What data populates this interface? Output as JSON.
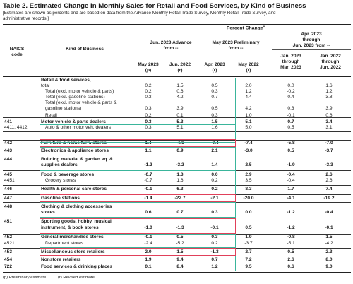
{
  "table": {
    "title": "Table 2.  Estimated Change in Monthly Sales for Retail and Food Services, by Kind of Business",
    "subtitle": "[Estimates are shown as percents and are based on data from the Advance Monthly Retail Trade Survey,  Monthly Retail Trade Survey, and administrative records.]",
    "percent_change": "Percent Change",
    "percent_change_sup": "1",
    "col_naics": [
      "NAICS",
      "code"
    ],
    "col_kind": "Kind of Business",
    "group_advance": [
      "Jun. 2023 Advance",
      "from --"
    ],
    "group_prelim": [
      "May 2023 Preliminary",
      "from --"
    ],
    "group_apr": [
      "Apr. 2023",
      "through",
      "Jun. 2023 from --"
    ],
    "sub_may2023": [
      "May 2023",
      "(p)"
    ],
    "sub_jun2022a": [
      "Jun. 2022",
      "(r)"
    ],
    "sub_apr2023": [
      "Apr. 2023",
      "(r)"
    ],
    "sub_may2022": [
      "May 2022",
      "(r)"
    ],
    "sub_janmar": [
      "Jan. 2023",
      "through",
      "Mar. 2023"
    ],
    "sub_janjun": [
      "Jan. 2022",
      "through",
      "Jun. 2022"
    ]
  },
  "rows": [
    {
      "code": "",
      "kind": "Retail & food services,",
      "v": [
        "",
        "",
        "",
        "",
        "",
        ""
      ],
      "bold": true
    },
    {
      "code": "",
      "kind": "total",
      "v": [
        "0.2",
        "1.5",
        "0.5",
        "2.0",
        "0.0",
        "1.6"
      ],
      "bold": false
    },
    {
      "code": "",
      "kind": "Total (excl. motor vehicle & parts)",
      "v": [
        "0.2",
        "0.6",
        "0.3",
        "1.2",
        "-0.2",
        "1.2"
      ],
      "bold": false
    },
    {
      "code": "",
      "kind": "Total (excl. gasoline stations)",
      "v": [
        "0.3",
        "4.2",
        "0.7",
        "4.4",
        "0.4",
        "3.8"
      ],
      "bold": false
    },
    {
      "code": "",
      "kind": "Total (excl. motor vehicle & parts &",
      "v": [
        "",
        "",
        "",
        "",
        "",
        ""
      ],
      "bold": false
    },
    {
      "code": "",
      "kind": "gasoline stations)",
      "v": [
        "0.3",
        "3.9",
        "0.5",
        "4.2",
        "0.3",
        "3.9"
      ],
      "bold": false
    },
    {
      "code": "",
      "kind": "Retail",
      "v": [
        "0.2",
        "0.1",
        "0.3",
        "1.0",
        "-0.1",
        "0.6"
      ],
      "bold": false
    },
    {
      "code": "441",
      "kind": "Motor vehicle & parts dealers",
      "v": [
        "0.3",
        "5.3",
        "1.5",
        "5.1",
        "0.7",
        "3.4"
      ],
      "bold": true
    },
    {
      "code": "4411, 4412",
      "kind": "Auto & other motor veh. dealers",
      "v": [
        "0.3",
        "5.1",
        "1.6",
        "5.0",
        "0.5",
        "3.1"
      ],
      "bold": false
    },
    {
      "code": "442",
      "kind": "Furniture & home furn. stores",
      "v": [
        "1.4",
        "-4.6",
        "-0.4",
        "-7.4",
        "-5.8",
        "-7.0"
      ],
      "bold": true
    },
    {
      "code": "443",
      "kind": "Electronics & appliance stores",
      "v": [
        "1.1",
        "0.9",
        "2.1",
        "-3.0",
        "0.5",
        "-3.7"
      ],
      "bold": true
    },
    {
      "code": "444",
      "kind": "Building material & garden eq. &",
      "v": [
        "",
        "",
        "",
        "",
        "",
        ""
      ],
      "bold": true
    },
    {
      "code": "",
      "kind": "supplies dealers",
      "v": [
        "-1.2",
        "-3.2",
        "1.4",
        "2.5",
        "-1.9",
        "-3.3"
      ],
      "bold": true
    },
    {
      "code": "445",
      "kind": "Food & beverage stores",
      "v": [
        "-0.7",
        "1.3",
        "0.0",
        "2.9",
        "-0.4",
        "2.6"
      ],
      "bold": true
    },
    {
      "code": "4451",
      "kind": "Grocery stores",
      "v": [
        "-0.7",
        "1.6",
        "0.2",
        "3.5",
        "-0.4",
        "2.6"
      ],
      "bold": false
    },
    {
      "code": "446",
      "kind": "Health & personal care stores",
      "v": [
        "-0.1",
        "6.3",
        "0.2",
        "8.3",
        "1.7",
        "7.4"
      ],
      "bold": true
    },
    {
      "code": "447",
      "kind": "Gasoline stations",
      "v": [
        "-1.4",
        "-22.7",
        "-2.1",
        "-20.0",
        "-4.1",
        "-19.2"
      ],
      "bold": true
    },
    {
      "code": "448",
      "kind": "Clothing & clothing accessories",
      "v": [
        "",
        "",
        "",
        "",
        "",
        ""
      ],
      "bold": true
    },
    {
      "code": "",
      "kind": "stores",
      "v": [
        "0.6",
        "0.7",
        "0.3",
        "0.0",
        "-1.2",
        "-0.4"
      ],
      "bold": true
    },
    {
      "code": "451",
      "kind": "Sporting goods, hobby, musical",
      "v": [
        "",
        "",
        "",
        "",
        "",
        ""
      ],
      "bold": true
    },
    {
      "code": "",
      "kind": "instrument, & book stores",
      "v": [
        "-1.0",
        "-1.3",
        "-0.1",
        "0.5",
        "-1.2",
        "-0.1"
      ],
      "bold": true
    },
    {
      "code": "452",
      "kind": "General merchandise stores",
      "v": [
        "-0.1",
        "0.5",
        "0.3",
        "1.9",
        "-0.8",
        "1.5"
      ],
      "bold": true
    },
    {
      "code": "4521",
      "kind": "Department stores",
      "v": [
        "-2.4",
        "-5.2",
        "0.2",
        "-3.7",
        "-5.1",
        "-4.2"
      ],
      "bold": false
    },
    {
      "code": "453",
      "kind": "Miscellaneous store retailers",
      "v": [
        "2.0",
        "1.5",
        "-1.3",
        "2.7",
        "0.5",
        "2.3"
      ],
      "bold": true
    },
    {
      "code": "454",
      "kind": "Nonstore retailers",
      "v": [
        "1.9",
        "9.4",
        "0.7",
        "7.2",
        "2.6",
        "8.0"
      ],
      "bold": true
    },
    {
      "code": "722",
      "kind": "Food services & drinking places",
      "v": [
        "0.1",
        "8.4",
        "1.2",
        "9.5",
        "0.6",
        "9.0"
      ],
      "bold": true
    }
  ],
  "footnotes": {
    "preliminary": "(p)  Preliminary estimate",
    "revised": "(r)    Revised estimate"
  },
  "highlight_colors": {
    "green": "#3ab59b",
    "red": "#e0405a"
  }
}
